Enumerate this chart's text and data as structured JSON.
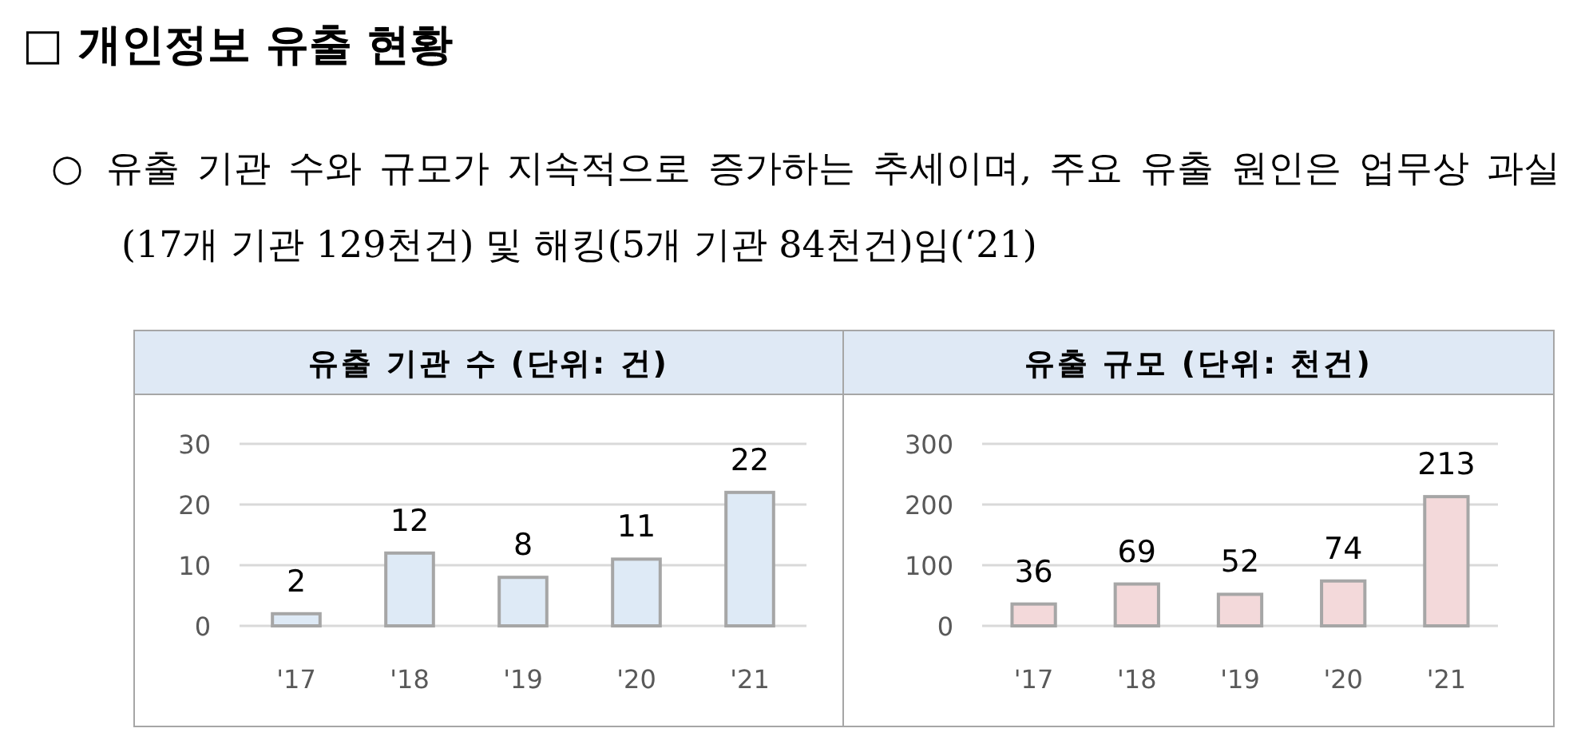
{
  "chart_data": [
    {
      "type": "other",
      "title": "□ 개인정보 유출 현황",
      "annotations": [
        "○ 유출 기관 수와 규모가 지속적으로 증가하는 추세이며, 주요 유출 원인은 업무상 과실(17개 기관 129천건) 및 해킹(5개 기관 84천건)임(‘21)"
      ]
    },
    {
      "type": "bar",
      "title": "유출 기관 수 (단위: 건)",
      "categories": [
        "'17",
        "'18",
        "'19",
        "'20",
        "'21"
      ],
      "values": [
        2,
        12,
        8,
        11,
        22
      ],
      "color": "#deeaf6",
      "ylim": [
        0,
        30
      ],
      "yticks": [
        0,
        10,
        20,
        30
      ],
      "grid": "y",
      "data_labels": true
    },
    {
      "type": "bar",
      "title": "유출 규모 (단위: 천건)",
      "categories": [
        "'17",
        "'18",
        "'19",
        "'20",
        "'21"
      ],
      "values": [
        36,
        69,
        52,
        74,
        213
      ],
      "color": "#f3d9da",
      "ylim": [
        0,
        300
      ],
      "yticks": [
        0,
        100,
        200,
        300
      ],
      "grid": "y",
      "data_labels": true
    }
  ]
}
